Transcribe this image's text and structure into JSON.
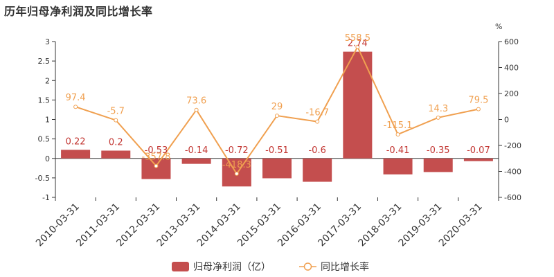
{
  "title": "历年归母净利润及同比增长率",
  "colors": {
    "bar": "#c23531",
    "bar_fill": "#c44e4e",
    "line": "#f0a050",
    "axis": "#333333"
  },
  "chart_data": {
    "type": "bar",
    "title": "历年归母净利润及同比增长率",
    "categories": [
      "2010-03-31",
      "2011-03-31",
      "2012-03-31",
      "2013-03-31",
      "2014-03-31",
      "2015-03-31",
      "2016-03-31",
      "2017-03-31",
      "2018-03-31",
      "2019-03-31",
      "2020-03-31"
    ],
    "series": [
      {
        "name": "归母净利润（亿）",
        "type": "bar",
        "axis": "left",
        "values": [
          0.22,
          0.2,
          -0.53,
          -0.14,
          -0.72,
          -0.51,
          -0.6,
          2.74,
          -0.41,
          -0.35,
          -0.07
        ],
        "labels": [
          "0.22",
          "0.2",
          "-0.53",
          "-0.14",
          "-0.72",
          "-0.51",
          "-0.6",
          "2.74",
          "-0.41",
          "-0.35",
          "-0.07"
        ]
      },
      {
        "name": "同比增长率",
        "type": "line",
        "axis": "right",
        "values": [
          97.4,
          -5.7,
          -357.8,
          73.6,
          -418.3,
          29,
          -16.7,
          558.5,
          -115.1,
          14.3,
          79.5
        ],
        "labels": [
          "97.4",
          "-5.7",
          "-357.8",
          "73.6",
          "-418.3",
          "29",
          "-16.7",
          "558.5",
          "-115.1",
          "14.3",
          "79.5"
        ]
      }
    ],
    "y_left": {
      "ylim": [
        -1,
        3
      ],
      "ticks": [
        -1,
        -0.5,
        0,
        0.5,
        1,
        1.5,
        2,
        2.5,
        3
      ],
      "tick_labels": [
        "-1",
        "-0.5",
        "0",
        "0.5",
        "1",
        "1.5",
        "2",
        "2.5",
        "3"
      ]
    },
    "y_right": {
      "unit": "%",
      "ylim": [
        -600,
        600
      ],
      "ticks": [
        -600,
        -400,
        -200,
        0,
        200,
        400,
        600
      ],
      "tick_labels": [
        "-600",
        "-400",
        "-200",
        "0",
        "200",
        "400",
        "600"
      ]
    },
    "grid": false,
    "legend": {
      "placement": "bottom-center",
      "items": [
        "归母净利润（亿）",
        "同比增长率"
      ]
    }
  }
}
